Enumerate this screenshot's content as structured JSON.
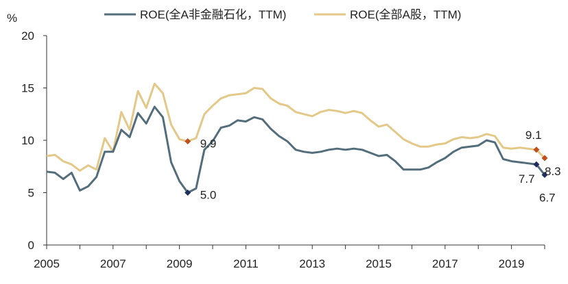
{
  "chart_data": {
    "type": "line",
    "y_unit": "%",
    "ylim": [
      0,
      20
    ],
    "yticks": [
      0,
      5,
      10,
      15,
      20
    ],
    "xlim": [
      2005,
      2020
    ],
    "xticks": [
      "2005",
      "2007",
      "2009",
      "2011",
      "2013",
      "2015",
      "2017",
      "2019"
    ],
    "grid": false,
    "legend_position": "top",
    "series": [
      {
        "name": "ROE(全A非金融石化，TTM)",
        "color": "#536d7b",
        "marker_color": "#1f2e5e",
        "points": [
          [
            2005.0,
            7.0
          ],
          [
            2005.25,
            6.9
          ],
          [
            2005.5,
            6.3
          ],
          [
            2005.75,
            6.9
          ],
          [
            2006.0,
            5.2
          ],
          [
            2006.25,
            5.6
          ],
          [
            2006.5,
            6.5
          ],
          [
            2006.75,
            8.9
          ],
          [
            2007.0,
            8.9
          ],
          [
            2007.25,
            11.0
          ],
          [
            2007.5,
            10.3
          ],
          [
            2007.75,
            12.6
          ],
          [
            2008.0,
            11.6
          ],
          [
            2008.25,
            13.2
          ],
          [
            2008.5,
            12.2
          ],
          [
            2008.75,
            7.9
          ],
          [
            2009.0,
            6.1
          ],
          [
            2009.25,
            5.0
          ],
          [
            2009.5,
            5.4
          ],
          [
            2009.75,
            9.1
          ],
          [
            2010.0,
            9.9
          ],
          [
            2010.25,
            11.2
          ],
          [
            2010.5,
            11.4
          ],
          [
            2010.75,
            11.9
          ],
          [
            2011.0,
            11.8
          ],
          [
            2011.25,
            12.2
          ],
          [
            2011.5,
            12.0
          ],
          [
            2011.75,
            11.1
          ],
          [
            2012.0,
            10.4
          ],
          [
            2012.25,
            9.9
          ],
          [
            2012.5,
            9.1
          ],
          [
            2012.75,
            8.9
          ],
          [
            2013.0,
            8.8
          ],
          [
            2013.25,
            8.9
          ],
          [
            2013.5,
            9.1
          ],
          [
            2013.75,
            9.2
          ],
          [
            2014.0,
            9.1
          ],
          [
            2014.25,
            9.2
          ],
          [
            2014.5,
            9.1
          ],
          [
            2014.75,
            8.8
          ],
          [
            2015.0,
            8.5
          ],
          [
            2015.25,
            8.6
          ],
          [
            2015.5,
            8.0
          ],
          [
            2015.75,
            7.2
          ],
          [
            2016.0,
            7.2
          ],
          [
            2016.25,
            7.2
          ],
          [
            2016.5,
            7.4
          ],
          [
            2016.75,
            7.9
          ],
          [
            2017.0,
            8.3
          ],
          [
            2017.25,
            8.9
          ],
          [
            2017.5,
            9.3
          ],
          [
            2017.75,
            9.4
          ],
          [
            2018.0,
            9.5
          ],
          [
            2018.25,
            10.0
          ],
          [
            2018.5,
            9.8
          ],
          [
            2018.75,
            8.2
          ],
          [
            2019.0,
            8.0
          ],
          [
            2019.25,
            7.9
          ],
          [
            2019.5,
            7.8
          ],
          [
            2019.75,
            7.7
          ],
          [
            2020.0,
            6.7
          ]
        ]
      },
      {
        "name": "ROE(全部A股，TTM)",
        "color": "#e3c888",
        "marker_color": "#c0501f",
        "points": [
          [
            2005.0,
            8.5
          ],
          [
            2005.25,
            8.6
          ],
          [
            2005.5,
            8.0
          ],
          [
            2005.75,
            7.7
          ],
          [
            2006.0,
            7.1
          ],
          [
            2006.25,
            7.6
          ],
          [
            2006.5,
            7.2
          ],
          [
            2006.75,
            10.2
          ],
          [
            2007.0,
            8.9
          ],
          [
            2007.25,
            12.7
          ],
          [
            2007.5,
            11.0
          ],
          [
            2007.75,
            14.7
          ],
          [
            2008.0,
            13.1
          ],
          [
            2008.25,
            15.4
          ],
          [
            2008.5,
            14.5
          ],
          [
            2008.75,
            11.5
          ],
          [
            2009.0,
            10.1
          ],
          [
            2009.25,
            9.9
          ],
          [
            2009.5,
            10.2
          ],
          [
            2009.75,
            12.5
          ],
          [
            2010.0,
            13.3
          ],
          [
            2010.25,
            14.0
          ],
          [
            2010.5,
            14.3
          ],
          [
            2010.75,
            14.4
          ],
          [
            2011.0,
            14.5
          ],
          [
            2011.25,
            15.0
          ],
          [
            2011.5,
            14.9
          ],
          [
            2011.75,
            14.0
          ],
          [
            2012.0,
            13.5
          ],
          [
            2012.25,
            13.3
          ],
          [
            2012.5,
            12.7
          ],
          [
            2012.75,
            12.5
          ],
          [
            2013.0,
            12.3
          ],
          [
            2013.25,
            12.7
          ],
          [
            2013.5,
            12.9
          ],
          [
            2013.75,
            12.8
          ],
          [
            2014.0,
            12.6
          ],
          [
            2014.25,
            12.8
          ],
          [
            2014.5,
            12.6
          ],
          [
            2014.75,
            11.9
          ],
          [
            2015.0,
            11.3
          ],
          [
            2015.25,
            11.5
          ],
          [
            2015.5,
            10.8
          ],
          [
            2015.75,
            10.1
          ],
          [
            2016.0,
            9.7
          ],
          [
            2016.25,
            9.4
          ],
          [
            2016.5,
            9.4
          ],
          [
            2016.75,
            9.6
          ],
          [
            2017.0,
            9.7
          ],
          [
            2017.25,
            10.1
          ],
          [
            2017.5,
            10.3
          ],
          [
            2017.75,
            10.2
          ],
          [
            2018.0,
            10.3
          ],
          [
            2018.25,
            10.6
          ],
          [
            2018.5,
            10.4
          ],
          [
            2018.75,
            9.3
          ],
          [
            2019.0,
            9.2
          ],
          [
            2019.25,
            9.3
          ],
          [
            2019.5,
            9.2
          ],
          [
            2019.75,
            9.1
          ],
          [
            2020.0,
            8.3
          ]
        ]
      }
    ],
    "annotations": [
      {
        "series": 1,
        "x": 2009.25,
        "y": 9.9,
        "label": "9.9",
        "position": "right"
      },
      {
        "series": 0,
        "x": 2009.25,
        "y": 5.0,
        "label": "5.0",
        "position": "right"
      },
      {
        "series": 1,
        "x": 2019.75,
        "y": 9.1,
        "label": "9.1",
        "position": "above"
      },
      {
        "series": 0,
        "x": 2019.75,
        "y": 7.7,
        "label": "7.7",
        "position": "below-left"
      },
      {
        "series": 1,
        "x": 2020.0,
        "y": 8.3,
        "label": "8.3",
        "position": "below-right"
      },
      {
        "series": 0,
        "x": 2020.0,
        "y": 6.7,
        "label": "6.7",
        "position": "below"
      }
    ]
  }
}
